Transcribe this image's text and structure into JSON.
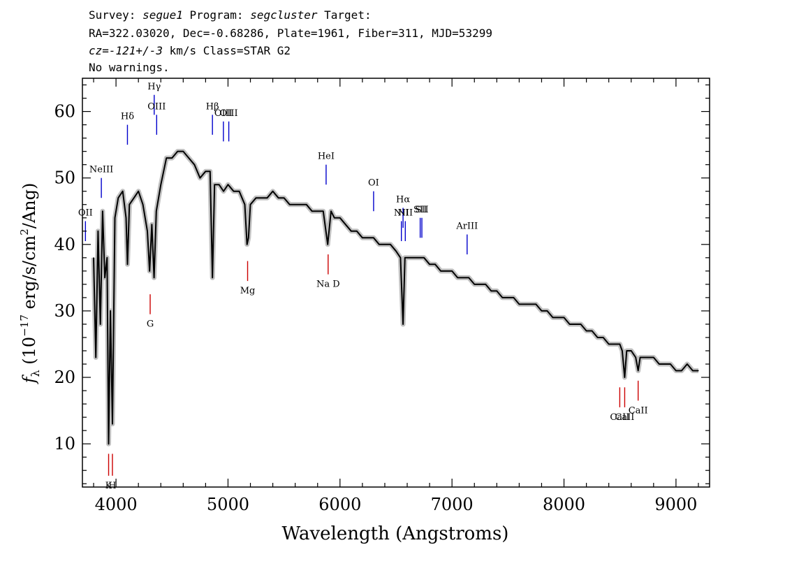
{
  "header": {
    "line1": {
      "k1": "Survey: ",
      "v1": "segue1",
      "k2": " Program: ",
      "v2": "segcluster",
      "k3": " Target:"
    },
    "line2": "RA=322.03020, Dec=-0.68286, Plate=1961, Fiber=311, MJD=53299",
    "line3": {
      "v1": "cz=-121+/-3",
      "k2": " km/s Class=STAR G2"
    },
    "line4": "No warnings."
  },
  "chart_data": {
    "type": "line",
    "xlabel": "Wavelength (Angstroms)",
    "ylabel": "f_λ (10^-17 erg/s/cm²/Ang)",
    "ylabel_parts": {
      "f": "f",
      "sub": "λ",
      "pre": " (10",
      "exp": "−17",
      "mid": " erg/s/cm",
      "exp2": "2",
      "post": "/Ang)"
    },
    "xlim": [
      3700,
      9300
    ],
    "ylim": [
      3.5,
      65
    ],
    "xticks": [
      4000,
      5000,
      6000,
      7000,
      8000,
      9000
    ],
    "yticks": [
      10,
      20,
      30,
      40,
      50,
      60
    ],
    "grid": false,
    "colors": {
      "spectrum": "#000000",
      "error_band": "#c0c0c0",
      "emission": "#0000cc",
      "absorption": "#cc0000"
    },
    "series": [
      {
        "x": [
          3800,
          3820,
          3840,
          3860,
          3880,
          3900,
          3920,
          3934,
          3950,
          3968,
          3990,
          4020,
          4060,
          4090,
          4102,
          4120,
          4160,
          4200,
          4240,
          4280,
          4300,
          4320,
          4340,
          4360,
          4400,
          4450,
          4500,
          4550,
          4600,
          4650,
          4700,
          4750,
          4800,
          4840,
          4861,
          4880,
          4920,
          4960,
          5000,
          5050,
          5100,
          5150,
          5170,
          5183,
          5200,
          5250,
          5300,
          5350,
          5400,
          5450,
          5500,
          5550,
          5600,
          5650,
          5700,
          5750,
          5800,
          5850,
          5890,
          5920,
          5950,
          6000,
          6050,
          6100,
          6150,
          6200,
          6250,
          6300,
          6350,
          6400,
          6450,
          6500,
          6540,
          6563,
          6580,
          6600,
          6650,
          6700,
          6750,
          6800,
          6850,
          6900,
          6950,
          7000,
          7050,
          7100,
          7150,
          7200,
          7250,
          7300,
          7350,
          7400,
          7450,
          7500,
          7550,
          7600,
          7650,
          7700,
          7750,
          7800,
          7850,
          7900,
          7950,
          8000,
          8050,
          8100,
          8150,
          8200,
          8250,
          8300,
          8350,
          8400,
          8450,
          8498,
          8520,
          8542,
          8560,
          8600,
          8640,
          8662,
          8680,
          8720,
          8760,
          8800,
          8850,
          8900,
          8950,
          9000,
          9050,
          9100,
          9150,
          9200
        ],
        "y": [
          38,
          23,
          42,
          28,
          45,
          35,
          38,
          10,
          30,
          13,
          44,
          47,
          48,
          44,
          37,
          46,
          47,
          48,
          46,
          42,
          36,
          43,
          35,
          45,
          49,
          53,
          53,
          54,
          54,
          53,
          52,
          50,
          51,
          51,
          35,
          49,
          49,
          48,
          49,
          48,
          48,
          46,
          40,
          41,
          46,
          47,
          47,
          47,
          48,
          47,
          47,
          46,
          46,
          46,
          46,
          45,
          45,
          45,
          40,
          45,
          44,
          44,
          43,
          42,
          42,
          41,
          41,
          41,
          40,
          40,
          40,
          39,
          38,
          28,
          38,
          38,
          38,
          38,
          38,
          37,
          37,
          36,
          36,
          36,
          35,
          35,
          35,
          34,
          34,
          34,
          33,
          33,
          32,
          32,
          32,
          31,
          31,
          31,
          31,
          30,
          30,
          29,
          29,
          29,
          28,
          28,
          28,
          27,
          27,
          26,
          26,
          25,
          25,
          25,
          24,
          20,
          24,
          24,
          23,
          21,
          23,
          23,
          23,
          23,
          22,
          22,
          22,
          21,
          21,
          22,
          21,
          21
        ]
      }
    ],
    "emission_lines": [
      {
        "label": "OII",
        "x": 3727,
        "y1": 40.5,
        "y2": 43.5
      },
      {
        "label": "NeIII",
        "x": 3869,
        "y1": 47,
        "y2": 50
      },
      {
        "label": "Hδ",
        "x": 4102,
        "y1": 55,
        "y2": 58
      },
      {
        "label": "Hγ",
        "x": 4341,
        "y1": 59.5,
        "y2": 62.5
      },
      {
        "label": "OIII",
        "x": 4363,
        "y1": 56.5,
        "y2": 59.5
      },
      {
        "label": "Hβ",
        "x": 4861,
        "y1": 56.5,
        "y2": 59.5
      },
      {
        "label": "OIII",
        "x": 4959,
        "y1": 55.5,
        "y2": 58.5
      },
      {
        "label": "OIII",
        "x": 5007,
        "y1": 55.5,
        "y2": 58.5
      },
      {
        "label": "HeI",
        "x": 5876,
        "y1": 49,
        "y2": 52
      },
      {
        "label": "OI",
        "x": 6300,
        "y1": 45,
        "y2": 48
      },
      {
        "label": "NII",
        "x": 6548,
        "y1": 40.5,
        "y2": 43.5
      },
      {
        "label": "Hα",
        "x": 6563,
        "y1": 42.5,
        "y2": 45.5
      },
      {
        "label": "NII",
        "x": 6583,
        "y1": 40.5,
        "y2": 43.5
      },
      {
        "label": "SII",
        "x": 6716,
        "y1": 41,
        "y2": 44
      },
      {
        "label": "SII",
        "x": 6731,
        "y1": 41,
        "y2": 44
      },
      {
        "label": "ArIII",
        "x": 7135,
        "y1": 38.5,
        "y2": 41.5
      }
    ],
    "absorption_lines": [
      {
        "label": "K",
        "x": 3934,
        "y1": 5.2,
        "y2": 8.5
      },
      {
        "label": "H",
        "x": 3968,
        "y1": 5.2,
        "y2": 8.5
      },
      {
        "label": "G",
        "x": 4305,
        "y1": 29.5,
        "y2": 32.5
      },
      {
        "label": "Mg",
        "x": 5175,
        "y1": 34.5,
        "y2": 37.5
      },
      {
        "label": "Na D",
        "x": 5894,
        "y1": 35.5,
        "y2": 38.5
      },
      {
        "label": "CaII",
        "x": 8498,
        "y1": 15.5,
        "y2": 18.5
      },
      {
        "label": "CaII",
        "x": 8542,
        "y1": 15.5,
        "y2": 18.5
      },
      {
        "label": "CaII",
        "x": 8662,
        "y1": 16.5,
        "y2": 19.5
      }
    ]
  }
}
